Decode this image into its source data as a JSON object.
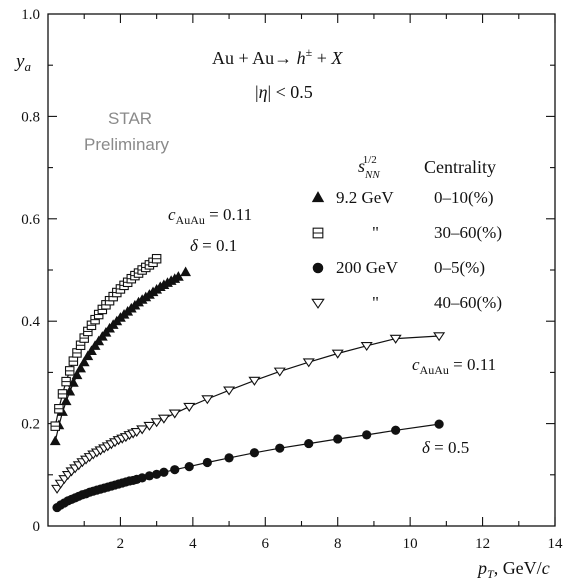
{
  "chart_data": {
    "type": "scatter",
    "title": "",
    "xlabel": "p_T, GeV/c",
    "ylabel": "y_a",
    "xlim": [
      0,
      14
    ],
    "ylim": [
      0,
      1.0
    ],
    "x_ticks": [
      2,
      4,
      6,
      8,
      10,
      12,
      14
    ],
    "x_tick_labels": [
      "2",
      "4",
      "6",
      "8",
      "10",
      "12",
      "14"
    ],
    "y_ticks": [
      0,
      0.2,
      0.4,
      0.6,
      0.8,
      1.0
    ],
    "y_tick_labels": [
      "0",
      "0.2",
      "0.4",
      "0.6",
      "0.8",
      "1.0"
    ],
    "grid": false,
    "legend_position": "right",
    "annotations": {
      "reaction": "Au + Au→ h± + X",
      "eta_cut": "|η| < 0.5",
      "star_line1": "STAR",
      "star_line2": "Preliminary",
      "params_low_energy_c": "c_AuAu = 0.11",
      "params_low_energy_delta": "δ = 0.1",
      "params_high_energy_c": "c_AuAu = 0.11",
      "params_high_energy_delta": "δ = 0.5",
      "legend_header_energy": "s_NN^1/2",
      "legend_header_centrality": "Centrality"
    },
    "series": [
      {
        "name": "9.2 GeV 0–10(%)",
        "energy": "9.2 GeV",
        "centrality": "0–10(%)",
        "marker": "triangle-up-filled",
        "x": [
          0.2,
          0.3,
          0.4,
          0.5,
          0.6,
          0.7,
          0.8,
          0.9,
          1.0,
          1.1,
          1.2,
          1.3,
          1.4,
          1.5,
          1.6,
          1.7,
          1.8,
          1.9,
          2.0,
          2.1,
          2.2,
          2.3,
          2.4,
          2.5,
          2.6,
          2.7,
          2.8,
          2.9,
          3.0,
          3.1,
          3.2,
          3.3,
          3.4,
          3.5,
          3.6,
          3.8
        ],
        "y": [
          0.165,
          0.196,
          0.222,
          0.243,
          0.262,
          0.279,
          0.294,
          0.307,
          0.319,
          0.331,
          0.341,
          0.351,
          0.36,
          0.369,
          0.377,
          0.385,
          0.392,
          0.399,
          0.406,
          0.412,
          0.418,
          0.424,
          0.43,
          0.436,
          0.441,
          0.446,
          0.451,
          0.456,
          0.461,
          0.466,
          0.47,
          0.474,
          0.478,
          0.482,
          0.486,
          0.495
        ]
      },
      {
        "name": "\" 30–60(%)",
        "energy": "\"",
        "centrality": "30–60(%)",
        "marker": "square-crossed",
        "x": [
          0.2,
          0.3,
          0.4,
          0.5,
          0.6,
          0.7,
          0.8,
          0.9,
          1.0,
          1.1,
          1.2,
          1.3,
          1.4,
          1.5,
          1.6,
          1.7,
          1.8,
          1.9,
          2.0,
          2.1,
          2.2,
          2.3,
          2.4,
          2.5,
          2.6,
          2.7,
          2.8,
          2.9,
          3.0
        ],
        "y": [
          0.195,
          0.229,
          0.258,
          0.282,
          0.303,
          0.322,
          0.338,
          0.353,
          0.367,
          0.38,
          0.392,
          0.403,
          0.413,
          0.423,
          0.432,
          0.44,
          0.448,
          0.456,
          0.463,
          0.47,
          0.476,
          0.483,
          0.489,
          0.494,
          0.5,
          0.505,
          0.51,
          0.515,
          0.522
        ]
      },
      {
        "name": "200 GeV 0–5(%)",
        "energy": "200 GeV",
        "centrality": "0–5(%)",
        "marker": "circle-filled",
        "x": [
          0.25,
          0.35,
          0.45,
          0.55,
          0.65,
          0.75,
          0.85,
          0.95,
          1.05,
          1.15,
          1.25,
          1.35,
          1.45,
          1.55,
          1.65,
          1.75,
          1.85,
          1.95,
          2.05,
          2.15,
          2.25,
          2.35,
          2.45,
          2.6,
          2.8,
          3.0,
          3.2,
          3.5,
          3.9,
          4.4,
          5.0,
          5.7,
          6.4,
          7.2,
          8.0,
          8.8,
          9.6,
          10.8
        ],
        "y": [
          0.036,
          0.041,
          0.045,
          0.049,
          0.052,
          0.055,
          0.058,
          0.061,
          0.063,
          0.066,
          0.068,
          0.07,
          0.072,
          0.074,
          0.076,
          0.078,
          0.08,
          0.082,
          0.084,
          0.086,
          0.088,
          0.089,
          0.091,
          0.094,
          0.098,
          0.101,
          0.105,
          0.11,
          0.116,
          0.124,
          0.133,
          0.143,
          0.152,
          0.161,
          0.17,
          0.178,
          0.187,
          0.199
        ]
      },
      {
        "name": "\" 40–60(%)",
        "energy": "\"",
        "centrality": "40–60(%)",
        "marker": "triangle-down-open",
        "x": [
          0.25,
          0.35,
          0.45,
          0.55,
          0.65,
          0.75,
          0.85,
          0.95,
          1.05,
          1.15,
          1.25,
          1.35,
          1.45,
          1.55,
          1.65,
          1.75,
          1.85,
          1.95,
          2.05,
          2.15,
          2.25,
          2.35,
          2.45,
          2.6,
          2.8,
          3.0,
          3.2,
          3.5,
          3.9,
          4.4,
          5.0,
          5.7,
          6.4,
          7.2,
          8.0,
          8.8,
          9.6,
          10.8
        ],
        "y": [
          0.073,
          0.083,
          0.092,
          0.1,
          0.107,
          0.113,
          0.119,
          0.125,
          0.13,
          0.135,
          0.14,
          0.144,
          0.148,
          0.152,
          0.156,
          0.16,
          0.164,
          0.168,
          0.171,
          0.174,
          0.178,
          0.181,
          0.184,
          0.189,
          0.196,
          0.203,
          0.21,
          0.22,
          0.233,
          0.248,
          0.265,
          0.284,
          0.302,
          0.32,
          0.337,
          0.352,
          0.366,
          0.371
        ]
      }
    ]
  }
}
